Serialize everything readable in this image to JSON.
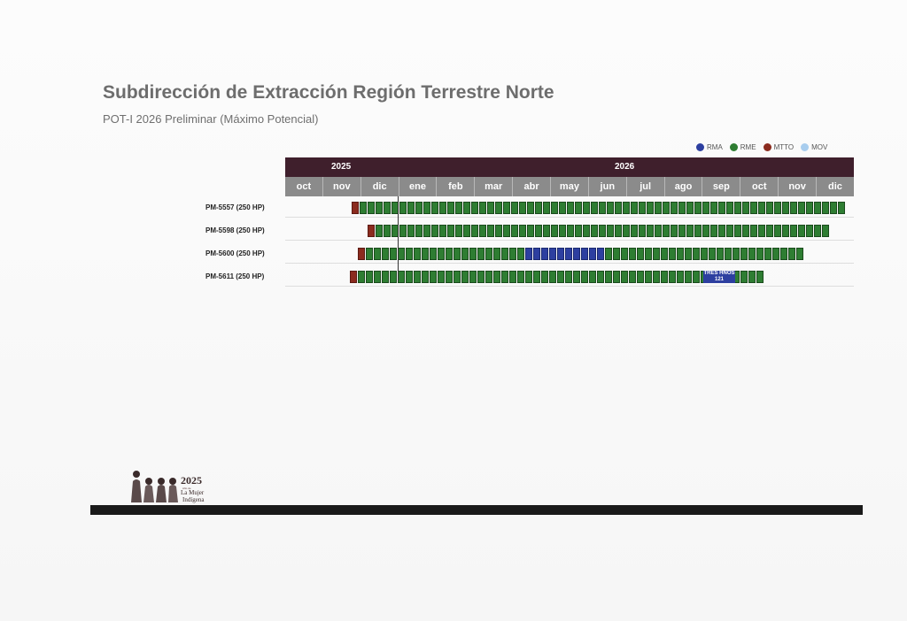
{
  "title": "Subdirección de Extracción Región Terrestre Norte",
  "subtitle": "POT-I 2026 Preliminar (Máximo Potencial)",
  "legend": [
    {
      "label": "RMA",
      "color": "#2d3fa0"
    },
    {
      "label": "RME",
      "color": "#2e7d32"
    },
    {
      "label": "MTTO",
      "color": "#8b2b1e"
    },
    {
      "label": "MOV",
      "color": "#a8cdee"
    }
  ],
  "gantt": {
    "years": [
      "2025",
      "2026"
    ],
    "months": [
      "oct",
      "nov",
      "dic",
      "ene",
      "feb",
      "mar",
      "abr",
      "may",
      "jun",
      "jul",
      "ago",
      "sep",
      "oct",
      "nov",
      "dic"
    ],
    "rows": [
      {
        "label": "PM-5557 (250 HP)"
      },
      {
        "label": "PM-5598 (250 HP)"
      },
      {
        "label": "PM-5600 (250 HP)"
      },
      {
        "label": "PM-5611 (250 HP)",
        "annotation": "TRES HNOS",
        "annotation_value": "121"
      }
    ]
  },
  "logo": {
    "year": "2025",
    "small_text": "Año de",
    "line1": "La Mujer",
    "line2": "Indígena"
  }
}
